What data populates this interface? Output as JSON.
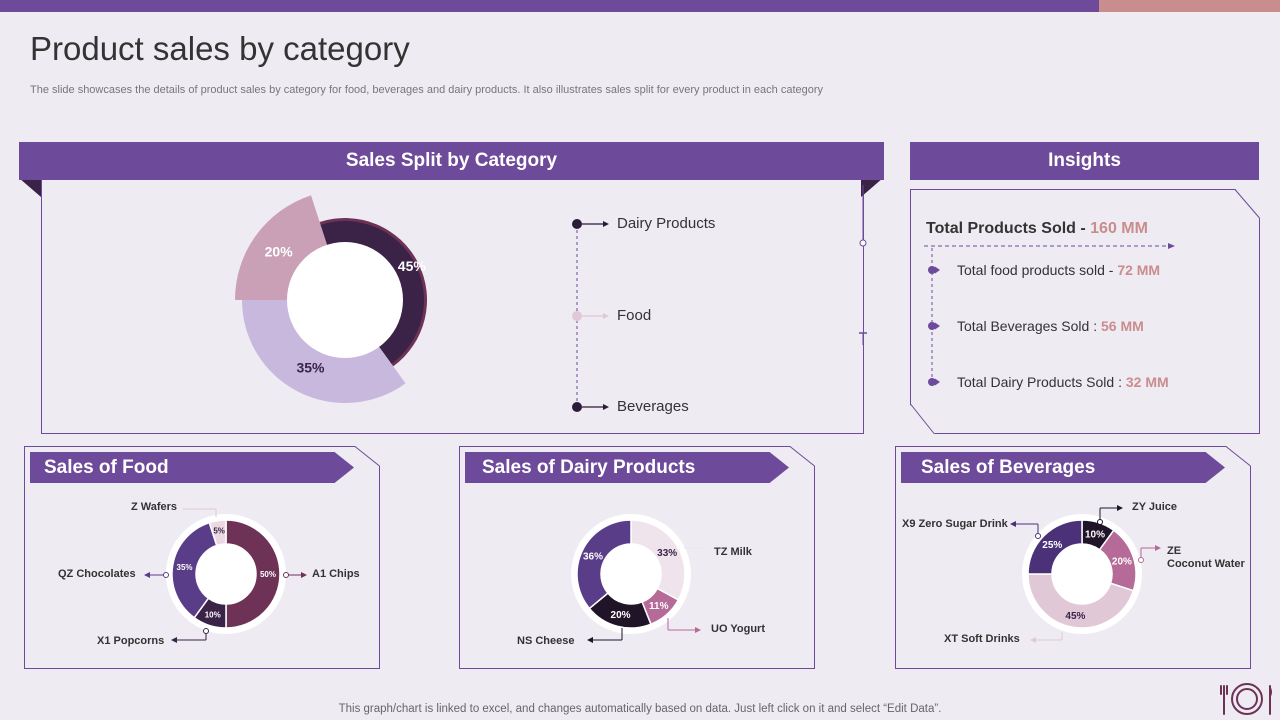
{
  "title": "Product sales by category",
  "subtitle": "The slide showcases the details of product sales by category for food, beverages and dairy products. It also illustrates sales split for every product in each category",
  "colors": {
    "accent": "#6e4a9a",
    "highlight": "#c98d8d",
    "background": "#efebf3"
  },
  "split_panel": {
    "title": "Sales Split by Category"
  },
  "insights": {
    "title": "Insights",
    "total_label": "Total Products Sold - ",
    "total_value": "160 MM",
    "items": [
      {
        "label": "Total food products sold -  ",
        "value": "72 MM"
      },
      {
        "label": "Total Beverages Sold : ",
        "value": "56 MM"
      },
      {
        "label": "Total Dairy Products Sold : ",
        "value": "32 MM"
      }
    ]
  },
  "food_panel": {
    "title": "Sales of Food"
  },
  "dairy_panel": {
    "title": "Sales of Dairy Products"
  },
  "bev_panel": {
    "title": "Sales of Beverages"
  },
  "footer": "This graph/chart is linked to excel,  and changes automatically based on data. Just left click on it and select “Edit Data”.",
  "chart_data": [
    {
      "type": "pie",
      "title": "Sales Split by Category",
      "categories": [
        "Dairy Products",
        "Food",
        "Beverages"
      ],
      "values": [
        20,
        45,
        35
      ],
      "labels": [
        "20%",
        "45%",
        "35%"
      ],
      "colors": [
        "#c9a0b6",
        "#3a2347",
        "#c8b8de"
      ]
    },
    {
      "type": "pie",
      "title": "Sales of Food",
      "categories": [
        "A1 Chips",
        "X1 Popcorns",
        "QZ Chocolates",
        "Z Wafers"
      ],
      "values": [
        50,
        10,
        35,
        5
      ],
      "labels": [
        "50%",
        "10%",
        "35%",
        "5%"
      ],
      "colors": [
        "#6e3257",
        "#3a2347",
        "#5a3d88",
        "#ead8e2"
      ]
    },
    {
      "type": "pie",
      "title": "Sales of Dairy Products",
      "categories": [
        "TZ Milk",
        "UO Yogurt",
        "NS Cheese",
        ""
      ],
      "values": [
        33,
        11,
        20,
        36
      ],
      "labels": [
        "33%",
        "11%",
        "20%",
        "36%"
      ],
      "colors": [
        "#efe4eb",
        "#b56a97",
        "#1f1428",
        "#5a3d88"
      ]
    },
    {
      "type": "pie",
      "title": "Sales of Beverages",
      "categories": [
        "ZY Juice",
        "ZE Coconut Water",
        "XT Soft Drinks",
        "X9 Zero Sugar Drink"
      ],
      "values": [
        10,
        20,
        45,
        25
      ],
      "labels": [
        "10%",
        "20%",
        "45%",
        "25%"
      ],
      "colors": [
        "#1f1428",
        "#b56a97",
        "#e0c8d6",
        "#4b3178"
      ]
    }
  ],
  "labels": {
    "food": {
      "wafers": "Z Wafers",
      "chips": "A1 Chips",
      "choc": "QZ Chocolates",
      "pop": "X1 Popcorns"
    },
    "dairy": {
      "milk": "TZ Milk",
      "yogurt": "UO Yogurt",
      "cheese": "NS Cheese"
    },
    "bev": {
      "juice": "ZY Juice",
      "coco1": "ZE",
      "coco2": "Coconut Water",
      "zero": "X9 Zero Sugar Drink",
      "soft": "XT Soft Drinks"
    }
  }
}
